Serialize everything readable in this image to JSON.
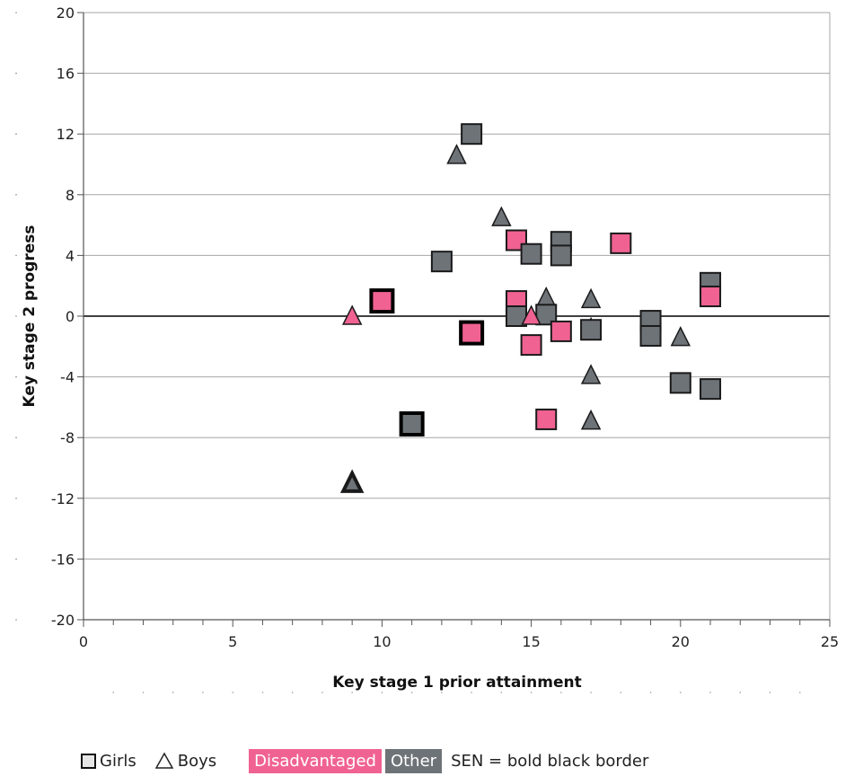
{
  "chart_data": {
    "type": "scatter",
    "xlabel": "Key stage 1 prior attainment",
    "ylabel": "Key stage 2 progress",
    "xlim": [
      0,
      25
    ],
    "ylim": [
      -20,
      20
    ],
    "x_ticks": [
      "0",
      "5",
      "10",
      "15",
      "20",
      "25"
    ],
    "y_ticks": [
      "20",
      "16",
      "12",
      "8",
      "4",
      "0",
      "-4",
      "-8",
      "-12",
      "-16",
      "-20"
    ],
    "grid": "horizontal",
    "points": [
      {
        "x": 13,
        "y": 12,
        "gender": "girl",
        "group": "other",
        "sen": false
      },
      {
        "x": 12.5,
        "y": 10.6,
        "gender": "boy",
        "group": "other",
        "sen": false
      },
      {
        "x": 14,
        "y": 6.5,
        "gender": "boy",
        "group": "other",
        "sen": false
      },
      {
        "x": 14.5,
        "y": 5,
        "gender": "girl",
        "group": "disadvantaged",
        "sen": false
      },
      {
        "x": 16,
        "y": 4.9,
        "gender": "girl",
        "group": "other",
        "sen": false
      },
      {
        "x": 18,
        "y": 4.8,
        "gender": "girl",
        "group": "disadvantaged",
        "sen": false
      },
      {
        "x": 15,
        "y": 4.1,
        "gender": "girl",
        "group": "other",
        "sen": false
      },
      {
        "x": 16,
        "y": 4,
        "gender": "girl",
        "group": "other",
        "sen": false
      },
      {
        "x": 12,
        "y": 3.6,
        "gender": "girl",
        "group": "other",
        "sen": false
      },
      {
        "x": 21,
        "y": 2.2,
        "gender": "girl",
        "group": "other",
        "sen": false
      },
      {
        "x": 21,
        "y": 1.3,
        "gender": "girl",
        "group": "disadvantaged",
        "sen": false
      },
      {
        "x": 15.5,
        "y": 1.2,
        "gender": "boy",
        "group": "other",
        "sen": false
      },
      {
        "x": 17,
        "y": 1.1,
        "gender": "boy",
        "group": "other",
        "sen": false
      },
      {
        "x": 14.5,
        "y": 1,
        "gender": "girl",
        "group": "disadvantaged",
        "sen": false
      },
      {
        "x": 10,
        "y": 1,
        "gender": "girl",
        "group": "disadvantaged",
        "sen": true
      },
      {
        "x": 9,
        "y": 0,
        "gender": "boy",
        "group": "disadvantaged",
        "sen": false
      },
      {
        "x": 14.5,
        "y": 0,
        "gender": "girl",
        "group": "other",
        "sen": false
      },
      {
        "x": 15.5,
        "y": 0.1,
        "gender": "girl",
        "group": "other",
        "sen": false
      },
      {
        "x": 15,
        "y": 0,
        "gender": "boy",
        "group": "disadvantaged",
        "sen": false
      },
      {
        "x": 19,
        "y": -0.3,
        "gender": "girl",
        "group": "other",
        "sen": false
      },
      {
        "x": 17,
        "y": -0.8,
        "gender": "boy",
        "group": "other",
        "sen": false
      },
      {
        "x": 17,
        "y": -0.9,
        "gender": "girl",
        "group": "other",
        "sen": false
      },
      {
        "x": 16,
        "y": -1,
        "gender": "girl",
        "group": "disadvantaged",
        "sen": false
      },
      {
        "x": 13,
        "y": -1.1,
        "gender": "girl",
        "group": "disadvantaged",
        "sen": true
      },
      {
        "x": 19,
        "y": -1.3,
        "gender": "girl",
        "group": "other",
        "sen": false
      },
      {
        "x": 20,
        "y": -1.4,
        "gender": "boy",
        "group": "other",
        "sen": false
      },
      {
        "x": 15,
        "y": -1.9,
        "gender": "girl",
        "group": "disadvantaged",
        "sen": false
      },
      {
        "x": 17,
        "y": -3.9,
        "gender": "boy",
        "group": "other",
        "sen": false
      },
      {
        "x": 20,
        "y": -4.4,
        "gender": "girl",
        "group": "other",
        "sen": false
      },
      {
        "x": 21,
        "y": -4.8,
        "gender": "girl",
        "group": "other",
        "sen": false
      },
      {
        "x": 15.5,
        "y": -6.8,
        "gender": "girl",
        "group": "disadvantaged",
        "sen": false
      },
      {
        "x": 17,
        "y": -6.9,
        "gender": "boy",
        "group": "other",
        "sen": false
      },
      {
        "x": 11,
        "y": -7.1,
        "gender": "girl",
        "group": "other",
        "sen": true
      },
      {
        "x": 9,
        "y": -11,
        "gender": "boy",
        "group": "other",
        "sen": true
      }
    ]
  },
  "legend": {
    "girls": "Girls",
    "boys": "Boys",
    "disadvantaged": "Disadvantaged",
    "other": "Other",
    "sen_note": "SEN = bold black border"
  },
  "colors": {
    "disadvantaged": "#f06292",
    "other": "#6e7378",
    "grid": "#a6a6a6",
    "zero_line": "#000000"
  }
}
